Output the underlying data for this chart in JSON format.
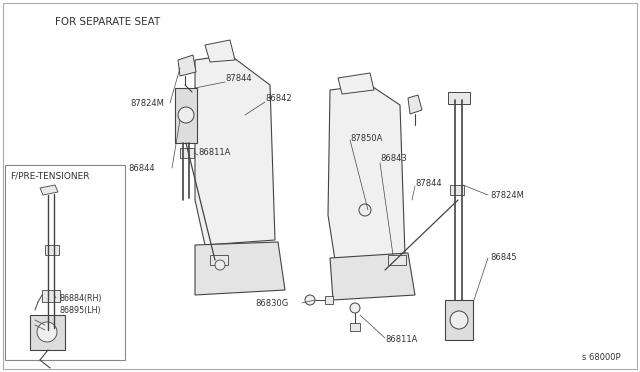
{
  "background_color": "#ffffff",
  "title_for_separate": "FOR SEPARATE SEAT",
  "title_pretensioner": "F/PRE-TENSIONER",
  "watermark": "s 68000P",
  "label_86884": "86884(RH)",
  "label_86895": "86895(LH)",
  "font_size_label": 6.0,
  "font_size_title": 7.0,
  "line_color": "#444444",
  "text_color": "#333333",
  "seat_fill": "#f0f0f0",
  "part_fill": "#e8e8e8"
}
